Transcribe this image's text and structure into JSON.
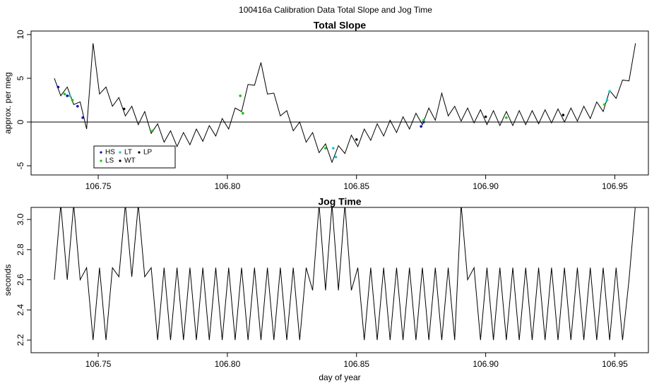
{
  "title": "100416a   Calibration Data Total Slope and Jog Time",
  "chart_data": [
    {
      "type": "line",
      "title": "Total Slope",
      "ylabel": "approx. per meg",
      "color": "#000000",
      "xlim": [
        106.724,
        106.963
      ],
      "ylim": [
        -6.05,
        10.4
      ],
      "xticks": [
        {
          "value": 106.75,
          "label": "106.75"
        },
        {
          "value": 106.8,
          "label": "106.80"
        },
        {
          "value": 106.85,
          "label": "106.85"
        },
        {
          "value": 106.9,
          "label": "106.90"
        },
        {
          "value": 106.95,
          "label": "106.95"
        }
      ],
      "yticks": [
        -5,
        0,
        5,
        10
      ],
      "hline": 0,
      "x": [
        106.733,
        106.7355,
        106.738,
        106.7405,
        106.743,
        106.7455,
        106.748,
        106.7505,
        106.753,
        106.7555,
        106.758,
        106.7605,
        106.763,
        106.7655,
        106.768,
        106.7705,
        106.773,
        106.7755,
        106.778,
        106.7805,
        106.783,
        106.7855,
        106.788,
        106.7905,
        106.793,
        106.7955,
        106.798,
        106.8005,
        106.803,
        106.8055,
        106.808,
        106.8105,
        106.813,
        106.8155,
        106.818,
        106.8205,
        106.823,
        106.8255,
        106.828,
        106.8305,
        106.833,
        106.8355,
        106.838,
        106.8405,
        106.843,
        106.8455,
        106.848,
        106.8505,
        106.853,
        106.8555,
        106.858,
        106.8605,
        106.863,
        106.8655,
        106.868,
        106.8705,
        106.873,
        106.8755,
        106.878,
        106.8805,
        106.883,
        106.8855,
        106.888,
        106.8905,
        106.893,
        106.8955,
        106.898,
        106.9005,
        106.903,
        106.9055,
        106.908,
        106.9105,
        106.913,
        106.9155,
        106.918,
        106.9205,
        106.923,
        106.9255,
        106.928,
        106.9305,
        106.933,
        106.9355,
        106.938,
        106.9405,
        106.943,
        106.9455,
        106.948,
        106.9505,
        106.953,
        106.9555,
        106.958
      ],
      "values": [
        5,
        3,
        4,
        2,
        2.3,
        -0.8,
        9,
        3.2,
        4,
        1.8,
        2.8,
        0.7,
        1.8,
        -0.3,
        1.2,
        -1.3,
        -0.2,
        -2.3,
        -1,
        -2.8,
        -1.2,
        -2.6,
        -0.8,
        -2.2,
        -0.4,
        -1.6,
        0.4,
        -0.8,
        1.6,
        1.2,
        4.3,
        4.2,
        6.8,
        3.2,
        3.3,
        0.7,
        1.3,
        -1,
        0,
        -2.3,
        -1.2,
        -3.5,
        -2.5,
        -4.6,
        -2.7,
        -3.6,
        -1.5,
        -2.8,
        -0.8,
        -2.1,
        -0.2,
        -1.6,
        0.2,
        -1.2,
        0.6,
        -0.8,
        1,
        -0.3,
        1.6,
        0.2,
        3.3,
        0.7,
        1.8,
        0.1,
        1.6,
        -0.1,
        1.4,
        -0.3,
        1.3,
        -0.4,
        1.2,
        -0.4,
        1.3,
        -0.3,
        1.3,
        -0.2,
        1.4,
        -0.1,
        1.5,
        0,
        1.6,
        0.1,
        1.8,
        0.4,
        2.3,
        1.2,
        3.6,
        2.7,
        4.8,
        4.7,
        9
      ],
      "points": [
        {
          "name": "HS",
          "color": "#0000cc",
          "x": [
            106.7345,
            106.738,
            106.742,
            106.744,
            106.875,
            106.876
          ],
          "values": [
            4,
            3,
            1.8,
            0.5,
            -0.5,
            0
          ]
        },
        {
          "name": "LS",
          "color": "#00cc00",
          "x": [
            106.737,
            106.74,
            106.771,
            106.805,
            106.806,
            106.838,
            106.876,
            106.908,
            106.946
          ],
          "values": [
            3.2,
            2.5,
            -1,
            3,
            1,
            -3,
            0.2,
            0.5,
            2
          ]
        },
        {
          "name": "LT",
          "color": "#00cccc",
          "x": [
            106.739,
            106.841,
            106.842,
            106.947,
            106.948
          ],
          "values": [
            3,
            -3,
            -4,
            2.5,
            3.5
          ]
        },
        {
          "name": "WT",
          "color": "#000000",
          "x": [
            106.76,
            106.85
          ],
          "values": [
            1.5,
            -2
          ]
        },
        {
          "name": "LP",
          "color": "#000000",
          "x": [
            106.9,
            106.93
          ],
          "values": [
            0.6,
            0.8
          ]
        }
      ]
    },
    {
      "type": "line",
      "title": "Jog Time",
      "ylabel": "seconds",
      "xlabel": "day of year",
      "color": "#000000",
      "xlim": [
        106.724,
        106.963
      ],
      "ylim": [
        2.116,
        3.08
      ],
      "xticks": [
        {
          "value": 106.75,
          "label": "106.75"
        },
        {
          "value": 106.8,
          "label": "106.80"
        },
        {
          "value": 106.85,
          "label": "106.85"
        },
        {
          "value": 106.9,
          "label": "106.90"
        },
        {
          "value": 106.95,
          "label": "106.95"
        }
      ],
      "yticks": [
        2.2,
        2.4,
        2.6,
        2.8,
        {
          "value": 3,
          "label": "3.0"
        }
      ],
      "x": [
        106.733,
        106.7355,
        106.738,
        106.7405,
        106.743,
        106.7455,
        106.748,
        106.7505,
        106.753,
        106.7555,
        106.758,
        106.7605,
        106.763,
        106.7655,
        106.768,
        106.7705,
        106.773,
        106.7755,
        106.778,
        106.7805,
        106.783,
        106.7855,
        106.788,
        106.7905,
        106.793,
        106.7955,
        106.798,
        106.8005,
        106.803,
        106.8055,
        106.808,
        106.8105,
        106.813,
        106.8155,
        106.818,
        106.8205,
        106.823,
        106.8255,
        106.828,
        106.8305,
        106.833,
        106.8355,
        106.838,
        106.8405,
        106.843,
        106.8455,
        106.848,
        106.8505,
        106.853,
        106.8555,
        106.858,
        106.8605,
        106.863,
        106.8655,
        106.868,
        106.8705,
        106.873,
        106.8755,
        106.878,
        106.8805,
        106.883,
        106.8855,
        106.888,
        106.8905,
        106.893,
        106.8955,
        106.898,
        106.9005,
        106.903,
        106.9055,
        106.908,
        106.9105,
        106.913,
        106.9155,
        106.918,
        106.9205,
        106.923,
        106.9255,
        106.928,
        106.9305,
        106.933,
        106.9355,
        106.938,
        106.9405,
        106.943,
        106.9455,
        106.948,
        106.9505,
        106.953,
        106.9555,
        106.958
      ],
      "values": [
        2.6,
        3.1,
        2.6,
        3.1,
        2.6,
        2.68,
        2.2,
        2.68,
        2.2,
        2.68,
        2.62,
        3.1,
        2.62,
        3.1,
        2.62,
        2.68,
        2.2,
        2.68,
        2.2,
        2.68,
        2.2,
        2.68,
        2.2,
        2.68,
        2.2,
        2.68,
        2.2,
        2.68,
        2.2,
        2.68,
        2.2,
        2.68,
        2.2,
        2.68,
        2.2,
        2.68,
        2.2,
        2.68,
        2.2,
        2.68,
        2.53,
        3.1,
        2.53,
        3.1,
        2.53,
        3.1,
        2.53,
        2.68,
        2.2,
        2.68,
        2.2,
        2.68,
        2.2,
        2.68,
        2.2,
        2.68,
        2.2,
        2.68,
        2.2,
        2.68,
        2.2,
        2.68,
        2.2,
        3.1,
        2.6,
        2.68,
        2.2,
        2.68,
        2.2,
        2.68,
        2.2,
        2.68,
        2.2,
        2.68,
        2.2,
        2.68,
        2.2,
        2.68,
        2.2,
        2.68,
        2.2,
        2.68,
        2.2,
        2.68,
        2.2,
        2.68,
        2.2,
        2.68,
        2.2,
        2.6,
        3.1
      ]
    }
  ]
}
